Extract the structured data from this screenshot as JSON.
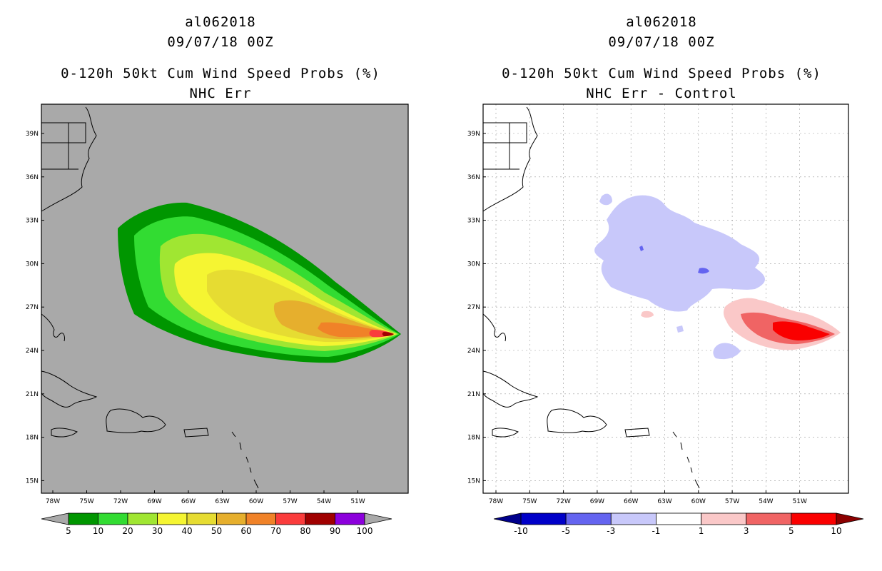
{
  "panels": [
    {
      "id": "left",
      "storm_id": "al062018",
      "datetime": "09/07/18 00Z",
      "title": "0-120h 50kt Cum Wind Speed Probs (%)",
      "subtitle": "NHC Err",
      "background": "#a9a9a9",
      "lat_labels": [
        "39N",
        "36N",
        "33N",
        "30N",
        "27N",
        "24N",
        "21N",
        "18N",
        "15N"
      ],
      "lon_labels": [
        "78W",
        "75W",
        "72W",
        "69W",
        "66W",
        "63W",
        "60W",
        "57W",
        "54W",
        "51W"
      ],
      "colorbar": {
        "colors": [
          "#009600",
          "#32dc32",
          "#a0e632",
          "#f5f532",
          "#e6dc32",
          "#e6af2d",
          "#f08228",
          "#fa3c3c",
          "#a00000",
          "#8c00dc"
        ],
        "labels": [
          "5",
          "10",
          "20",
          "30",
          "40",
          "50",
          "60",
          "70",
          "80",
          "90",
          "100"
        ],
        "left_arrow": "#a9a9a9",
        "right_arrow": "#a9a9a9"
      }
    },
    {
      "id": "right",
      "storm_id": "al062018",
      "datetime": "09/07/18 00Z",
      "title": "0-120h 50kt Cum Wind Speed Probs (%)",
      "subtitle": "NHC Err - Control",
      "background": "#ffffff",
      "lat_labels": [
        "39N",
        "36N",
        "33N",
        "30N",
        "27N",
        "24N",
        "21N",
        "18N",
        "15N"
      ],
      "lon_labels": [
        "78W",
        "75W",
        "72W",
        "69W",
        "66W",
        "63W",
        "60W",
        "57W",
        "54W",
        "51W"
      ],
      "colorbar": {
        "colors": [
          "#0000c8",
          "#6464f0",
          "#c8c8fa",
          "#ffffff",
          "#fac8c8",
          "#f06464",
          "#fa0000"
        ],
        "labels": [
          "-10",
          "-5",
          "-3",
          "-1",
          "1",
          "3",
          "5",
          "10"
        ],
        "left_arrow": "#00008c",
        "right_arrow": "#8c0000"
      }
    }
  ]
}
